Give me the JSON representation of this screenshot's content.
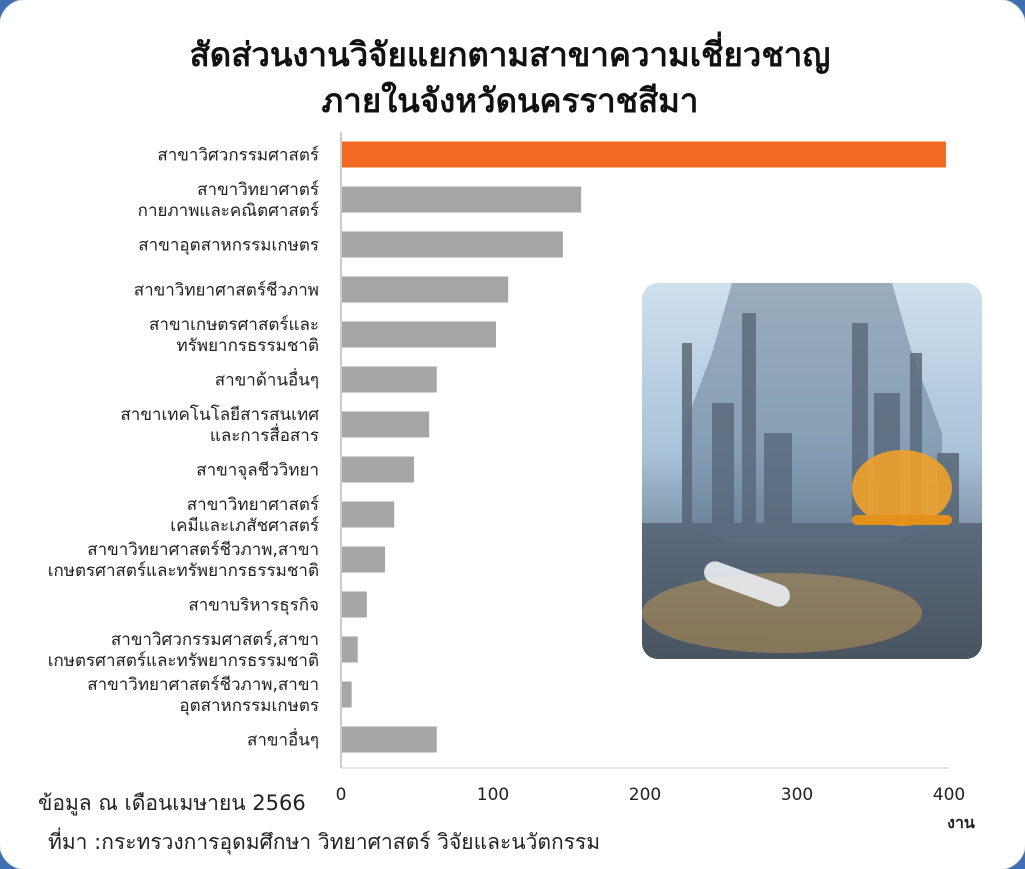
{
  "title": {
    "line1": "สัดส่วนงานวิจัยแยกตามสาขาความเชี่ยวชาญ",
    "line2": "ภายในจังหวัดนครราชสีมา"
  },
  "note": "ข้อมูล ณ เดือนเมษายน 2566",
  "source": "ที่มา :กระทรวงการอุดมศึกษา วิทยาศาสตร์ วิจัยและนวัตกรรม",
  "colors": {
    "highlight": "#f26a21",
    "bar": "#a6a6a6",
    "axis": "#cccccc"
  },
  "image": {
    "name": "engineer-refinery-photo"
  },
  "chart_data": {
    "type": "bar",
    "orientation": "horizontal",
    "categories": [
      [
        "สาขาวิศวกรรมศาสตร์"
      ],
      [
        "สาขาวิทยาศาตร์",
        "กายภาพและคณิตศาสตร์"
      ],
      [
        "สาขาอุตสาหกรรมเกษตร"
      ],
      [
        "สาขาวิทยาศาสตร์ชีวภาพ"
      ],
      [
        "สาขาเกษตรศาสตร์และ",
        "ทรัพยากรธรรมชาติ"
      ],
      [
        "สาขาด้านอื่นๆ"
      ],
      [
        "สาขาเทคโนโลยีสารสนเทศ",
        "และการสื่อสาร"
      ],
      [
        "สาขาจุลชีววิทยา"
      ],
      [
        "สาขาวิทยาศาสตร์",
        "เคมีและเภสัชศาสตร์"
      ],
      [
        "สาขาวิทยาศาสตร์ชีวภาพ,สาขา",
        "เกษตรศาสตร์และทรัพยากรธรรมชาติ"
      ],
      [
        "สาขาบริหารธุรกิจ"
      ],
      [
        "สาขาวิศวกรรมศาสตร์,สาขา",
        "เกษตรศาสตร์และทรัพยากรธรรมชาติ"
      ],
      [
        "สาขาวิทยาศาสตร์ชีวภาพ,สาขา",
        "อุตสาหกรรมเกษตร"
      ],
      [
        "สาขาอื่นๆ"
      ]
    ],
    "values": [
      398,
      158,
      146,
      110,
      102,
      63,
      58,
      48,
      35,
      29,
      17,
      11,
      7,
      63
    ],
    "highlight_index": 0,
    "xlim": [
      0,
      400
    ],
    "xticks": [
      0,
      100,
      200,
      300,
      400
    ],
    "xlabel": "งาน",
    "grid": false
  }
}
